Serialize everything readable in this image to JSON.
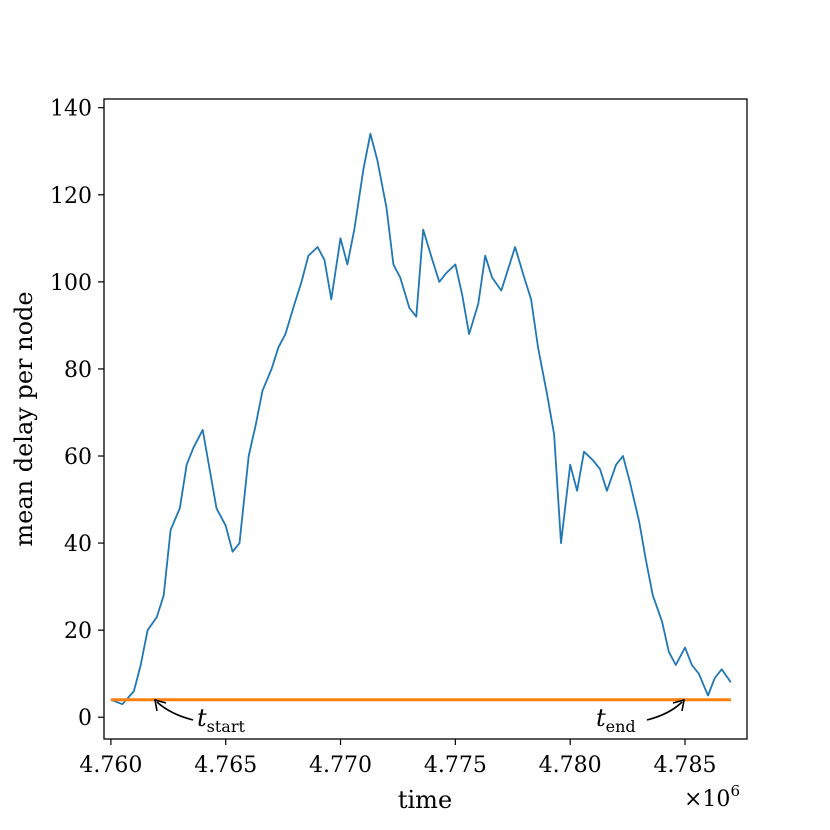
{
  "chart_data": {
    "type": "line",
    "title": "",
    "xlabel": "time",
    "ylabel": "mean delay per node",
    "x_multiplier_label": "×10",
    "x_multiplier_exp": "6",
    "xlim": [
      4.7597,
      4.7877
    ],
    "ylim": [
      -5,
      142
    ],
    "xticks": [
      4.76,
      4.765,
      4.77,
      4.775,
      4.78,
      4.785
    ],
    "xtick_labels": [
      "4.760",
      "4.765",
      "4.770",
      "4.775",
      "4.780",
      "4.785"
    ],
    "yticks": [
      0,
      20,
      40,
      60,
      80,
      100,
      120,
      140
    ],
    "ytick_labels": [
      "0",
      "20",
      "40",
      "60",
      "80",
      "100",
      "120",
      "140"
    ],
    "grid": false,
    "series": [
      {
        "color": "#1f77b4",
        "x": [
          4.76,
          4.7605,
          4.761,
          4.7613,
          4.7616,
          4.762,
          4.7623,
          4.7626,
          4.763,
          4.7633,
          4.7636,
          4.764,
          4.7643,
          4.7646,
          4.765,
          4.7653,
          4.7656,
          4.766,
          4.7663,
          4.7666,
          4.767,
          4.7673,
          4.7676,
          4.768,
          4.7683,
          4.7686,
          4.769,
          4.7693,
          4.7696,
          4.77,
          4.7703,
          4.7706,
          4.771,
          4.7713,
          4.7716,
          4.772,
          4.7723,
          4.7726,
          4.773,
          4.7733,
          4.7736,
          4.774,
          4.7743,
          4.7746,
          4.775,
          4.7753,
          4.7756,
          4.776,
          4.7763,
          4.7766,
          4.777,
          4.7773,
          4.7776,
          4.778,
          4.7783,
          4.7786,
          4.779,
          4.7793,
          4.7796,
          4.78,
          4.7803,
          4.7806,
          4.781,
          4.7813,
          4.7816,
          4.782,
          4.7823,
          4.7826,
          4.783,
          4.7833,
          4.7836,
          4.784,
          4.7843,
          4.7846,
          4.785,
          4.7853,
          4.7856,
          4.786,
          4.7863,
          4.7866,
          4.787
        ],
        "y": [
          4,
          3,
          6,
          12,
          20,
          23,
          28,
          43,
          48,
          58,
          62,
          66,
          57,
          48,
          44,
          38,
          40,
          60,
          67,
          75,
          80,
          85,
          88,
          95,
          100,
          106,
          108,
          105,
          96,
          110,
          104,
          112,
          126,
          134,
          128,
          117,
          104,
          101,
          94,
          92,
          112,
          105,
          100,
          102,
          104,
          97,
          88,
          95,
          106,
          101,
          98,
          103,
          108,
          101,
          96,
          85,
          74,
          65,
          40,
          58,
          52,
          61,
          59,
          57,
          52,
          58,
          60,
          54,
          45,
          36,
          28,
          22,
          15,
          12,
          16,
          12,
          10,
          5,
          9,
          11,
          8
        ]
      },
      {
        "color": "#ff7f0e",
        "x": [
          4.76,
          4.787
        ],
        "y": [
          4,
          4
        ]
      }
    ],
    "annotations": [
      {
        "base": "t",
        "sub": "start"
      },
      {
        "base": "t",
        "sub": "end"
      }
    ]
  }
}
